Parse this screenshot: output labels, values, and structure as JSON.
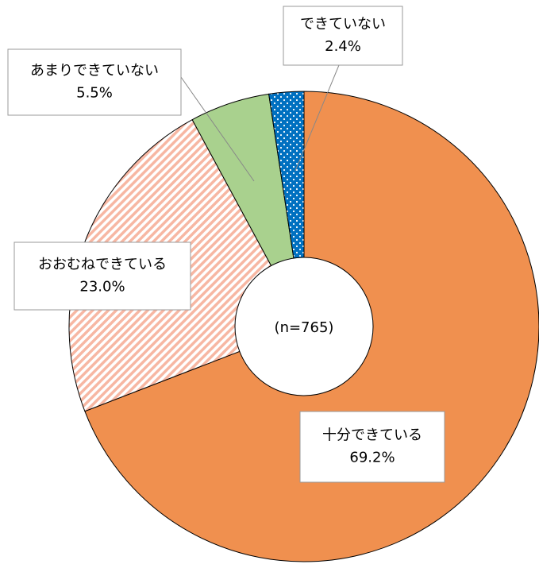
{
  "chart_data": {
    "type": "donut",
    "center_label": "(n=765)",
    "categories": [
      "十分できている",
      "おおむねできている",
      "あまりできていない",
      "できていない"
    ],
    "values": [
      69.2,
      23.0,
      5.5,
      2.4
    ],
    "value_labels": [
      "69.2%",
      "23.0%",
      "5.5%",
      "2.4%"
    ],
    "colors": [
      "#f0904f",
      "#f7b7a3",
      "#a9d18e",
      "#0070c0"
    ]
  }
}
